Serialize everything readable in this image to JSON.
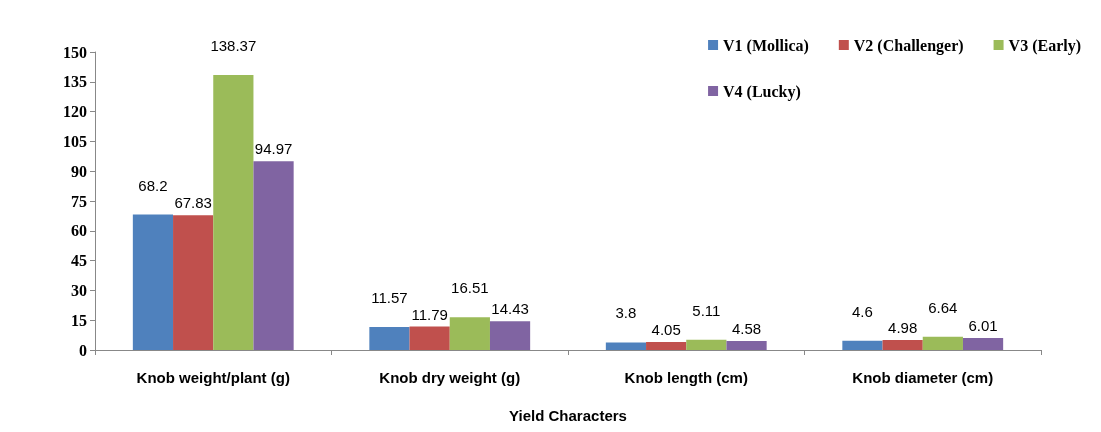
{
  "chart_data": {
    "type": "bar",
    "xlabel": "Yield Characters",
    "categories": [
      "Knob weight/plant (g)",
      "Knob dry weight (g)",
      "Knob length (cm)",
      "Knob diameter (cm)"
    ],
    "series": [
      {
        "name": "V1 (Mollica)",
        "color": "#4f81bd",
        "values": [
          68.2,
          11.57,
          3.8,
          4.6
        ]
      },
      {
        "name": "V2 (Challenger)",
        "color": "#c0504d",
        "values": [
          67.83,
          11.79,
          4.05,
          4.98
        ]
      },
      {
        "name": "V3 (Early)",
        "color": "#9bbb59",
        "values": [
          138.37,
          16.51,
          5.11,
          6.64
        ]
      },
      {
        "name": "V4 (Lucky)",
        "color": "#8064a2",
        "values": [
          94.97,
          14.43,
          4.58,
          6.01
        ]
      }
    ],
    "ylim": [
      0,
      150
    ],
    "yticks": [
      0,
      15,
      30,
      45,
      60,
      75,
      90,
      105,
      120,
      135,
      150
    ],
    "grid": false,
    "legend": "top right",
    "data_labels": true
  }
}
